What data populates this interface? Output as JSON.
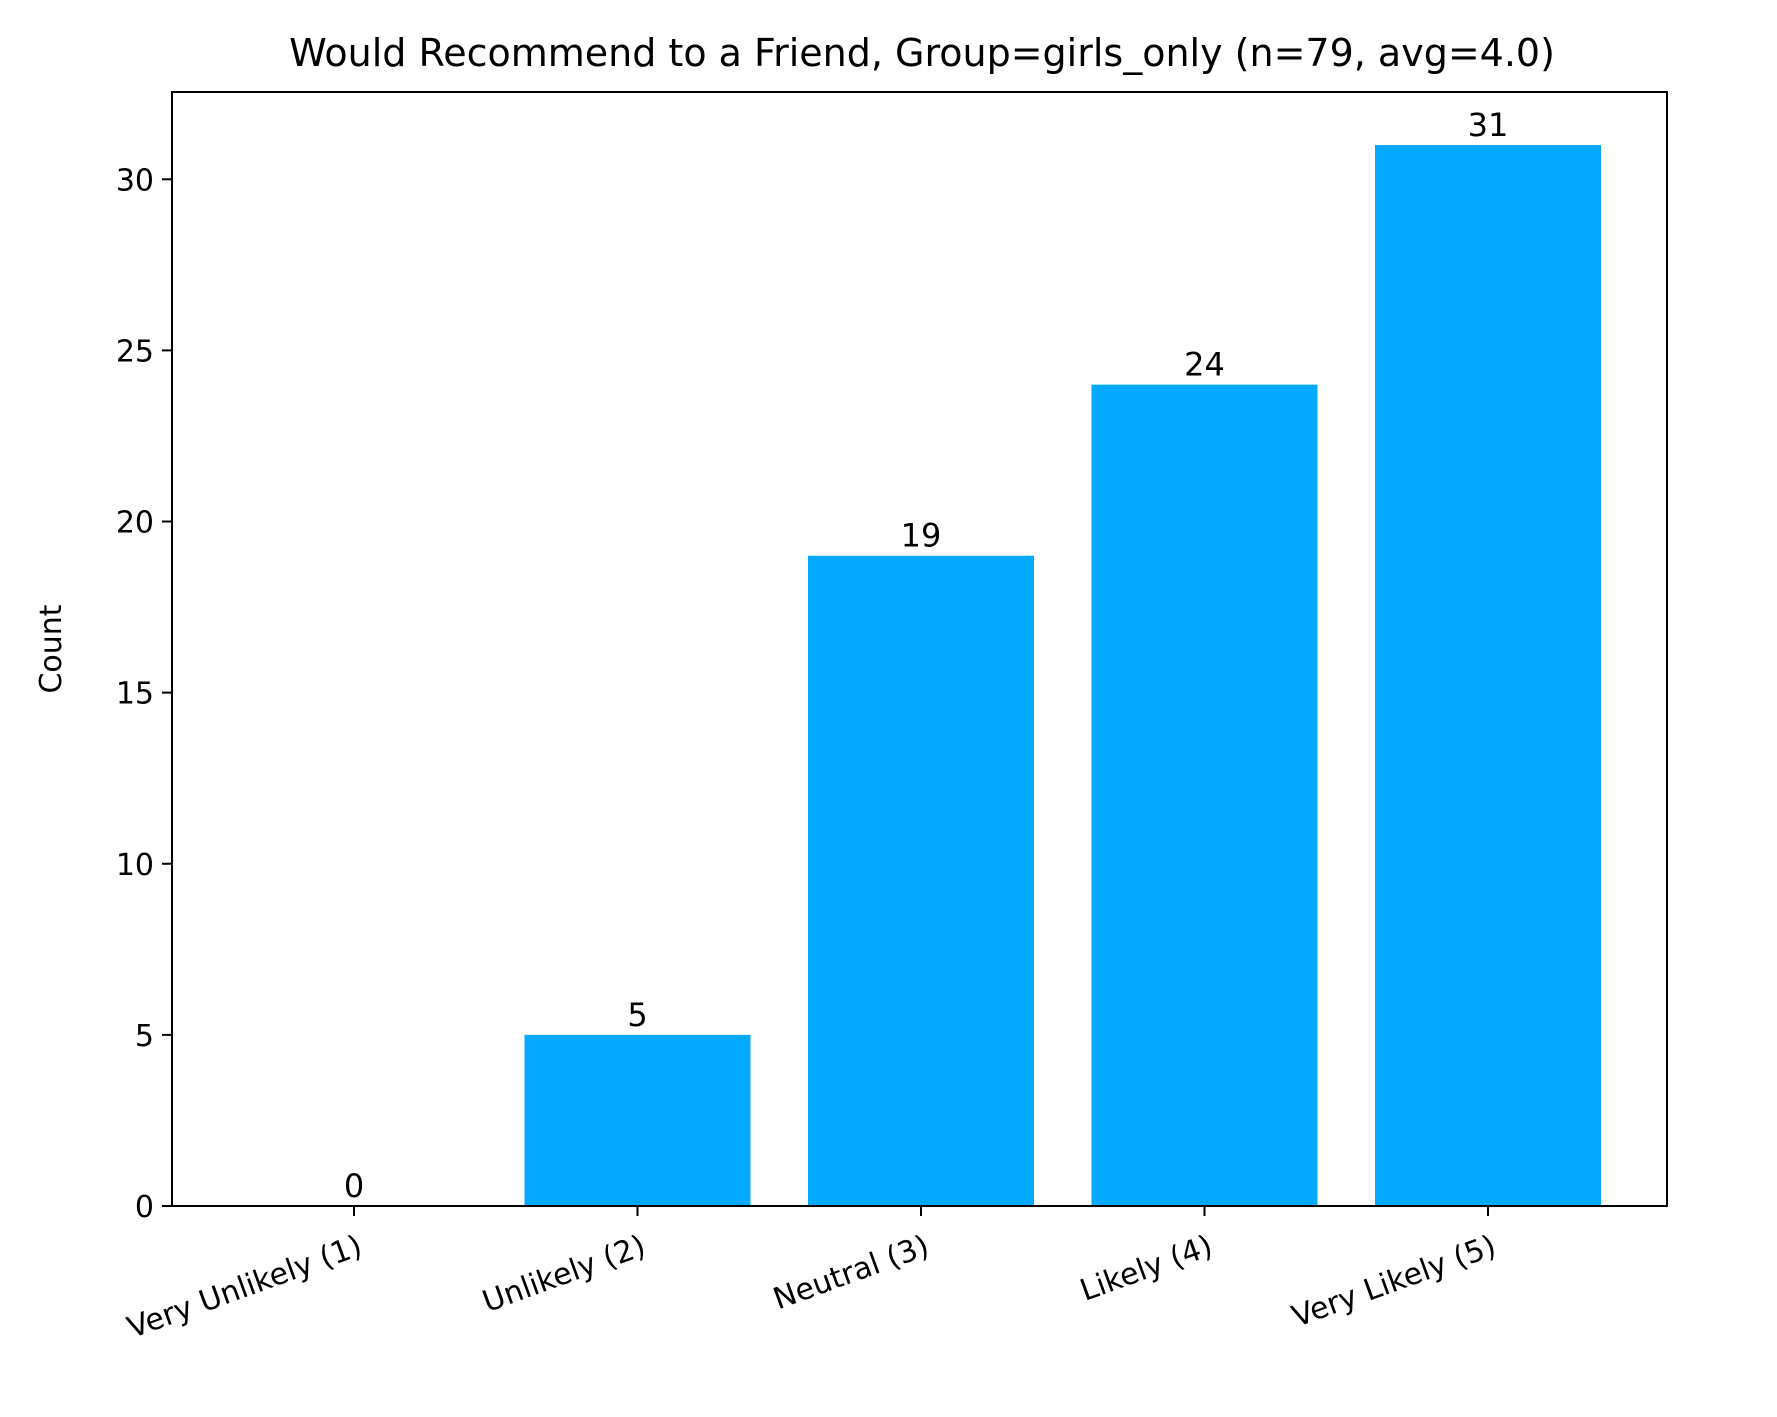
{
  "chart_data": {
    "type": "bar",
    "title": "Would Recommend to a Friend, Group=girls_only (n=79, avg=4.0)",
    "xlabel": "",
    "ylabel": "Count",
    "categories": [
      "Very Unlikely (1)",
      "Unlikely (2)",
      "Neutral (3)",
      "Likely (4)",
      "Very Likely (5)"
    ],
    "values": [
      0,
      5,
      19,
      24,
      31
    ],
    "ylim": [
      0,
      32.55
    ],
    "yticks": [
      0,
      5,
      10,
      15,
      20,
      25,
      30
    ],
    "bar_color": "#02A9FF",
    "grid": false,
    "legend": "none"
  }
}
